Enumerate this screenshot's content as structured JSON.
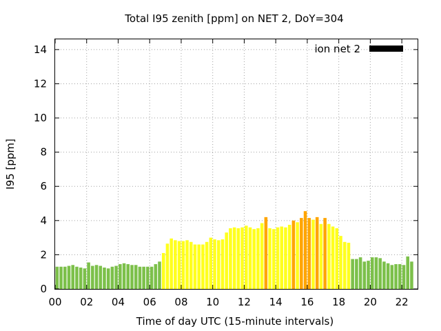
{
  "chart_data": {
    "type": "bar",
    "title": "Total I95 zenith [ppm] on NET 2, DoY=304",
    "xlabel": "Time of day UTC (15-minute intervals)",
    "ylabel": "I95 [ppm]",
    "legend": {
      "label": "ion net 2",
      "color": "#000000",
      "position": "top-right"
    },
    "xlim": [
      0,
      23
    ],
    "ylim": [
      0,
      14.6
    ],
    "x_ticks": [
      "00",
      "02",
      "04",
      "06",
      "08",
      "10",
      "12",
      "14",
      "16",
      "18",
      "20",
      "22"
    ],
    "y_ticks": [
      "0",
      "2",
      "4",
      "6",
      "8",
      "10",
      "12",
      "14"
    ],
    "interval_hours": 0.25,
    "colors": {
      "low": "#7cc04a",
      "moderate": "#ffff1e",
      "high": "#ffa500"
    },
    "series": [
      {
        "name": "ion net 2",
        "values": [
          1.3,
          1.3,
          1.3,
          1.35,
          1.4,
          1.3,
          1.25,
          1.2,
          1.55,
          1.35,
          1.4,
          1.35,
          1.25,
          1.2,
          1.3,
          1.35,
          1.45,
          1.5,
          1.45,
          1.4,
          1.4,
          1.3,
          1.3,
          1.3,
          1.3,
          1.45,
          1.6,
          2.1,
          2.65,
          2.95,
          2.85,
          2.8,
          2.8,
          2.85,
          2.75,
          2.6,
          2.6,
          2.6,
          2.75,
          3.0,
          2.9,
          2.85,
          2.9,
          3.3,
          3.55,
          3.6,
          3.55,
          3.6,
          3.7,
          3.6,
          3.5,
          3.55,
          3.85,
          4.2,
          3.55,
          3.5,
          3.6,
          3.65,
          3.6,
          3.75,
          4.0,
          3.9,
          4.15,
          4.55,
          4.15,
          4.05,
          4.2,
          3.8,
          4.15,
          3.8,
          3.65,
          3.55,
          3.1,
          2.75,
          2.7,
          1.75,
          1.75,
          1.85,
          1.6,
          1.65,
          1.85,
          1.85,
          1.8,
          1.6,
          1.5,
          1.4,
          1.45,
          1.45,
          1.4,
          1.9,
          1.6
        ],
        "levels": [
          "low",
          "low",
          "low",
          "low",
          "low",
          "low",
          "low",
          "low",
          "low",
          "low",
          "low",
          "low",
          "low",
          "low",
          "low",
          "low",
          "low",
          "low",
          "low",
          "low",
          "low",
          "low",
          "low",
          "low",
          "low",
          "low",
          "low",
          "moderate",
          "moderate",
          "moderate",
          "moderate",
          "moderate",
          "moderate",
          "moderate",
          "moderate",
          "moderate",
          "moderate",
          "moderate",
          "moderate",
          "moderate",
          "moderate",
          "moderate",
          "moderate",
          "moderate",
          "moderate",
          "moderate",
          "moderate",
          "moderate",
          "moderate",
          "moderate",
          "moderate",
          "moderate",
          "moderate",
          "high",
          "moderate",
          "moderate",
          "moderate",
          "moderate",
          "moderate",
          "moderate",
          "high",
          "moderate",
          "high",
          "high",
          "high",
          "moderate",
          "high",
          "moderate",
          "high",
          "moderate",
          "moderate",
          "moderate",
          "moderate",
          "moderate",
          "moderate",
          "low",
          "low",
          "low",
          "low",
          "low",
          "low",
          "low",
          "low",
          "low",
          "low",
          "low",
          "low",
          "low",
          "low",
          "low",
          "low"
        ]
      }
    ]
  }
}
